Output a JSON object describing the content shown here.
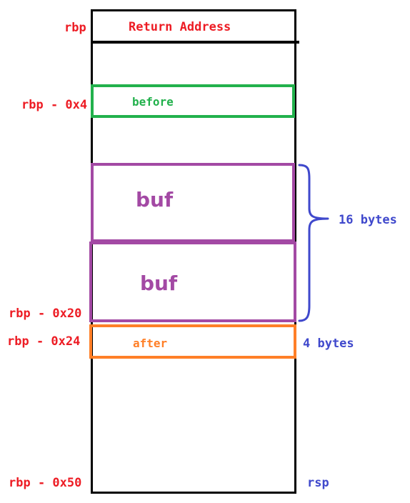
{
  "stack": {
    "return_address": "Return Address",
    "slots": {
      "before": "before",
      "buf_upper": "buf",
      "buf_lower": "buf",
      "after": "after"
    }
  },
  "offsets": {
    "rbp": "rbp",
    "rbp_minus_0x4": "rbp - 0x4",
    "rbp_minus_0x20": "rbp - 0x20",
    "rbp_minus_0x24": "rbp - 0x24",
    "rbp_minus_0x50": "rbp - 0x50"
  },
  "annotations": {
    "buf_size": "16 bytes",
    "after_size": "4 bytes",
    "rsp": "rsp"
  },
  "colors": {
    "frame": "#000000",
    "offset_text": "#ed1c24",
    "before": "#22b14c",
    "buf": "#a349a4",
    "after": "#ff7f27",
    "annotation": "#3f48cc"
  }
}
